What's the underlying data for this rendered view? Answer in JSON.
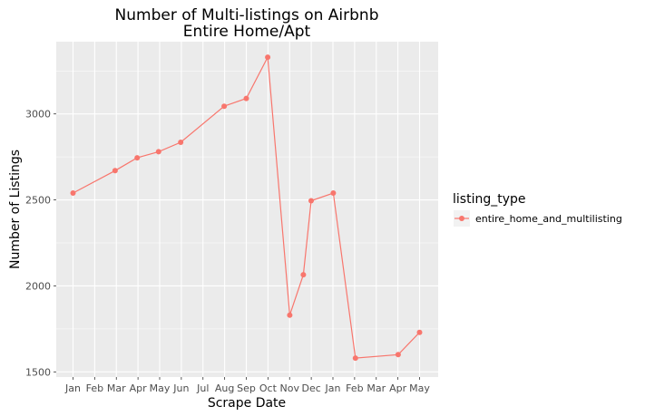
{
  "chart_data": {
    "type": "line",
    "title": "Number of Multi-listings on Airbnb",
    "subtitle": "Entire Home/Apt",
    "xlabel": "Scrape Date",
    "ylabel": "Number of Listings",
    "x_tick_labels": [
      "Jan",
      "Feb",
      "Mar",
      "Apr",
      "May",
      "Jun",
      "Jul",
      "Aug",
      "Sep",
      "Oct",
      "Nov",
      "Dec",
      "Jan",
      "Feb",
      "Mar",
      "Apr",
      "May"
    ],
    "y_ticks": [
      1500,
      2000,
      2500,
      3000
    ],
    "y_tick_labels": [
      "1500",
      "2000",
      "2500",
      "3000"
    ],
    "ylim": [
      1470,
      3420
    ],
    "grid": true,
    "legend": {
      "title": "listing_type",
      "position": "right"
    },
    "series": [
      {
        "name": "entire_home_and_multilisting",
        "color": "#F8766D",
        "x": [
          "2015-01-01",
          "2015-03-01",
          "2015-04-01",
          "2015-05-01",
          "2015-06-01",
          "2015-08-01",
          "2015-09-01",
          "2015-10-01",
          "2015-11-01",
          "2015-11-20",
          "2015-12-01",
          "2016-01-01",
          "2016-02-01",
          "2016-04-01",
          "2016-05-01"
        ],
        "y": [
          2540,
          2670,
          2745,
          2780,
          2835,
          3045,
          3090,
          3330,
          1830,
          2065,
          2495,
          2540,
          1580,
          1600,
          1730
        ]
      }
    ]
  }
}
